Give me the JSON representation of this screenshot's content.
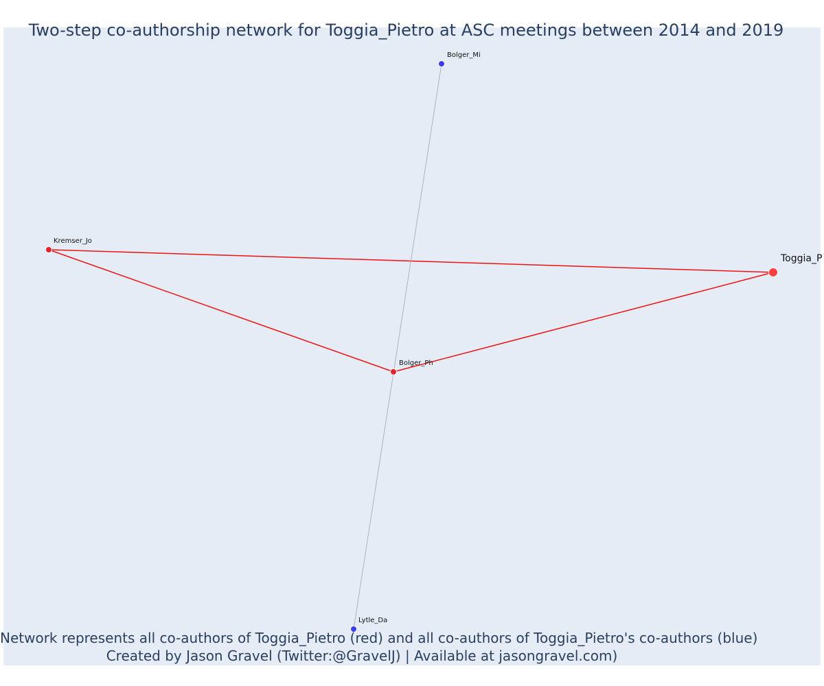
{
  "title": "Two-step co-authorship network for Toggia_Pietro at ASC meetings between 2014 and 2019",
  "captions": [
    "Network represents all co-authors of Toggia_Pietro (red) and all co-authors of Toggia_Pietro's co-authors (blue)",
    "Created by Jason Gravel (Twitter:@GravelJ) | Available at jasongravel.com)"
  ],
  "colors": {
    "background": "#e5ecf6",
    "text": "#2a3f5f",
    "focal": "#ff4040",
    "coauthor": "#e8202a",
    "second_step": "#3d3df0",
    "red_edge": "#ee1111",
    "gray_edge": "#b0b0c0"
  },
  "nodes": [
    {
      "id": "Toggia_P",
      "label": "Toggia_P",
      "group": "focal"
    },
    {
      "id": "Kremser_Jo",
      "label": "Kremser_Jo",
      "group": "coauthor"
    },
    {
      "id": "Bolger_Ph",
      "label": "Bolger_Ph",
      "group": "coauthor"
    },
    {
      "id": "Bolger_Mi",
      "label": "Bolger_Mi",
      "group": "second_step"
    },
    {
      "id": "Lytle_Da",
      "label": "Lytle_Da",
      "group": "second_step"
    }
  ],
  "edges": [
    {
      "source": "Kremser_Jo",
      "target": "Toggia_P",
      "type": "red"
    },
    {
      "source": "Kremser_Jo",
      "target": "Bolger_Ph",
      "type": "red"
    },
    {
      "source": "Bolger_Ph",
      "target": "Toggia_P",
      "type": "red"
    },
    {
      "source": "Bolger_Mi",
      "target": "Lytle_Da",
      "type": "gray"
    }
  ]
}
